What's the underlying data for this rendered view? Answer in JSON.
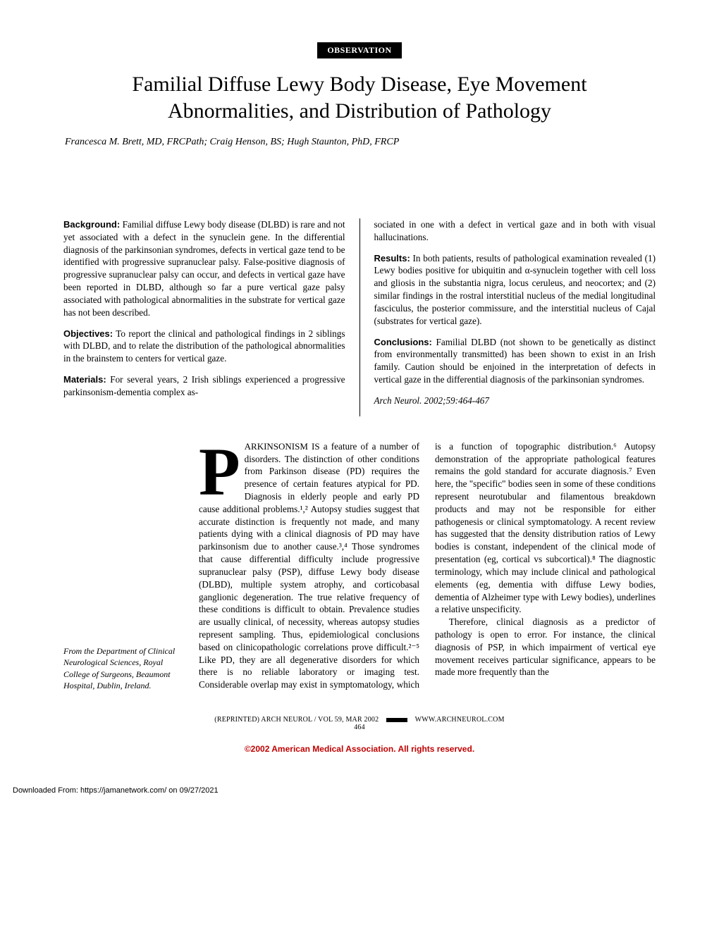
{
  "header": {
    "badge": "OBSERVATION",
    "title_line1": "Familial Diffuse Lewy Body Disease, Eye Movement",
    "title_line2": "Abnormalities, and Distribution of Pathology",
    "authors": "Francesca M. Brett, MD, FRCPath; Craig Henson, BS; Hugh Staunton, PhD, FRCP"
  },
  "abstract": {
    "left": {
      "background_label": "Background:",
      "background_text": " Familial diffuse Lewy body disease (DLBD) is rare and not yet associated with a defect in the synuclein gene. In the differential diagnosis of the parkinsonian syndromes, defects in vertical gaze tend to be identified with progressive supranuclear palsy. False-positive diagnosis of progressive supranuclear palsy can occur, and defects in vertical gaze have been reported in DLBD, although so far a pure vertical gaze palsy associated with pathological abnormalities in the substrate for vertical gaze has not been described.",
      "objectives_label": "Objectives:",
      "objectives_text": " To report the clinical and pathological findings in 2 siblings with DLBD, and to relate the distribution of the pathological abnormalities in the brainstem to centers for vertical gaze.",
      "materials_label": "Materials:",
      "materials_text": " For several years, 2 Irish siblings experienced a progressive parkinsonism-dementia complex as-"
    },
    "right": {
      "cont": "sociated in one with a defect in vertical gaze and in both with visual hallucinations.",
      "results_label": "Results:",
      "results_text": " In both patients, results of pathological examination revealed (1) Lewy bodies positive for ubiquitin and α-synuclein together with cell loss and gliosis in the substantia nigra, locus ceruleus, and neocortex; and (2) similar findings in the rostral interstitial nucleus of the medial longitudinal fasciculus, the posterior commissure, and the interstitial nucleus of Cajal (substrates for vertical gaze).",
      "conclusions_label": "Conclusions:",
      "conclusions_text": " Familial DLBD (not shown to be genetically as distinct from environmentally transmitted) has been shown to exist in an Irish family. Caution should be enjoined in the interpretation of defects in vertical gaze in the differential diagnosis of the parkinsonian syndromes.",
      "citation": "Arch Neurol. 2002;59:464-467"
    }
  },
  "body": {
    "affiliation": "From the Department of Clinical Neurological Sciences, Royal College of Surgeons, Beaumont Hospital, Dublin, Ireland.",
    "dropcap": "P",
    "lead_smallcaps": "ARKINSONISM IS",
    "text": " a feature of a number of disorders. The distinction of other conditions from Parkinson disease (PD) requires the presence of certain features atypical for PD. Diagnosis in elderly people and early PD cause additional problems.¹,² Autopsy studies suggest that accurate distinction is frequently not made, and many patients dying with a clinical diagnosis of PD may have parkinsonism due to another cause.³,⁴ Those syndromes that cause differential difficulty include progressive supranuclear palsy (PSP), diffuse Lewy body disease (DLBD), multiple system atrophy, and corticobasal ganglionic degeneration. The true relative frequency of these conditions is difficult to obtain. Prevalence studies are usually clinical, of necessity, whereas autopsy studies represent sampling. Thus, epidemiological conclusions based on clinicopathologic correlations prove difficult.²⁻⁵ Like PD, they are all degenerative disorders for which there is no reliable laboratory or imaging test. Considerable overlap may exist in symptomatology, which is a function of topographic distribution.⁶ Autopsy demonstration of the appropriate pathological features remains the gold standard for accurate diagnosis.⁷ Even here, the \"specific\" bodies seen in some of these conditions represent neurotubular and filamentous breakdown products and may not be responsible for either pathogenesis or clinical symptomatology. A recent review has suggested that the density distribution ratios of Lewy bodies is constant, independent of the clinical mode of presentation (eg, cortical vs subcortical).⁸ The diagnostic terminology, which may include clinical and pathological elements (eg, dementia with diffuse Lewy bodies, dementia of Alzheimer type with Lewy bodies), underlines a relative unspecificity.",
    "text2": "Therefore, clinical diagnosis as a predictor of pathology is open to error. For instance, the clinical diagnosis of PSP, in which impairment of vertical eye movement receives particular significance, appears to be made more frequently than the"
  },
  "footer": {
    "reprint": "(REPRINTED) ARCH NEUROL / VOL 59, MAR 2002",
    "url": "WWW.ARCHNEUROL.COM",
    "page": "464",
    "copyright": "©2002 American Medical Association. All rights reserved.",
    "download": "Downloaded From: https://jamanetwork.com/ on 09/27/2021"
  }
}
